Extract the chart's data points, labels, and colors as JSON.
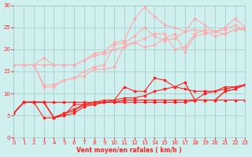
{
  "title": "",
  "xlabel": "Vent moyen/en rafales ( km/h )",
  "ylabel": "",
  "xlim": [
    0,
    23
  ],
  "ylim": [
    0,
    30
  ],
  "xticks": [
    0,
    1,
    2,
    3,
    4,
    5,
    6,
    7,
    8,
    9,
    10,
    11,
    12,
    13,
    14,
    15,
    16,
    17,
    18,
    19,
    20,
    21,
    22,
    23
  ],
  "yticks": [
    0,
    5,
    10,
    15,
    20,
    25,
    30
  ],
  "bg_color": "#d0f0f0",
  "grid_color": "#a0c8c8",
  "line_color_dark": "#ff2020",
  "line_color_light": "#ffaaaa",
  "series_light": [
    [
      16.5,
      16.5,
      16.5,
      18.0,
      16.5,
      16.5,
      16.5,
      17.5,
      18.5,
      19.0,
      20.0,
      20.5,
      21.5,
      20.5,
      21.0,
      22.5,
      23.5,
      19.5,
      23.0,
      23.5,
      24.0,
      24.5,
      25.5,
      24.5
    ],
    [
      16.5,
      16.5,
      16.5,
      16.5,
      16.5,
      16.5,
      16.5,
      17.5,
      19.0,
      19.5,
      21.5,
      22.0,
      27.0,
      29.5,
      27.5,
      25.5,
      25.0,
      24.0,
      27.0,
      25.5,
      24.0,
      25.0,
      27.0,
      25.0
    ],
    [
      16.5,
      16.5,
      16.5,
      12.0,
      12.0,
      13.0,
      13.5,
      14.0,
      15.5,
      15.5,
      16.0,
      21.0,
      21.5,
      22.5,
      23.5,
      23.5,
      20.0,
      20.5,
      23.5,
      24.5,
      24.0,
      23.5,
      24.5,
      24.5
    ],
    [
      16.5,
      16.5,
      16.5,
      11.5,
      11.5,
      13.0,
      13.5,
      15.0,
      16.0,
      16.5,
      21.0,
      21.5,
      23.0,
      25.0,
      23.0,
      22.0,
      22.5,
      24.0,
      24.5,
      24.0,
      23.0,
      23.5,
      24.5,
      25.0
    ]
  ],
  "series_dark": [
    [
      5.5,
      8.0,
      8.0,
      8.0,
      4.5,
      5.0,
      5.5,
      7.0,
      7.5,
      8.0,
      8.5,
      11.5,
      10.5,
      10.5,
      13.5,
      13.0,
      11.5,
      12.5,
      8.5,
      8.5,
      8.5,
      10.5,
      11.0,
      12.0
    ],
    [
      5.5,
      8.0,
      8.0,
      8.0,
      4.5,
      5.5,
      6.0,
      7.5,
      8.0,
      8.0,
      8.0,
      8.5,
      8.5,
      8.5,
      8.5,
      8.5,
      8.5,
      8.5,
      8.5,
      8.5,
      8.5,
      8.5,
      8.5,
      8.5
    ],
    [
      5.5,
      8.0,
      8.0,
      8.0,
      4.5,
      5.0,
      7.5,
      7.5,
      7.5,
      8.0,
      8.0,
      8.5,
      8.5,
      8.5,
      8.5,
      8.5,
      8.5,
      8.5,
      8.5,
      8.5,
      8.5,
      10.5,
      11.0,
      12.0
    ],
    [
      5.5,
      8.0,
      8.0,
      8.0,
      8.0,
      8.0,
      8.0,
      8.0,
      8.0,
      8.0,
      8.0,
      8.0,
      8.0,
      8.0,
      8.0,
      8.0,
      8.0,
      8.0,
      8.5,
      10.0,
      10.5,
      11.0,
      11.5,
      12.0
    ],
    [
      5.5,
      8.0,
      8.0,
      4.5,
      4.5,
      5.5,
      6.5,
      7.5,
      8.0,
      8.5,
      8.5,
      9.0,
      9.0,
      9.5,
      10.5,
      11.0,
      11.5,
      11.0,
      10.5,
      10.5,
      10.5,
      11.5,
      11.5,
      12.0
    ]
  ]
}
